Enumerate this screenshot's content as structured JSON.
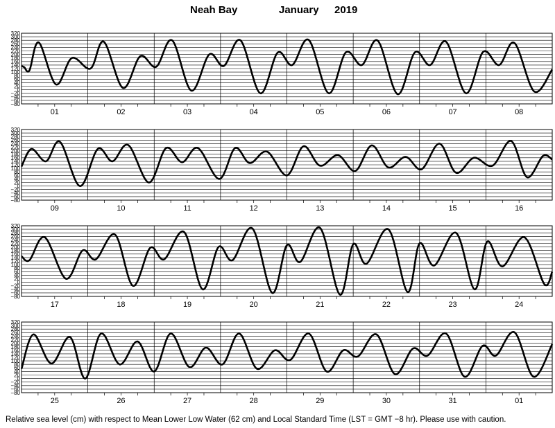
{
  "header": {
    "station": "Neah Bay",
    "month": "January",
    "year": "2019"
  },
  "footer": {
    "note": "Relative sea level (cm) with respect to Mean Lower Low Water (62 cm) and Local Standard Time (LST = GMT −8 hr). Please use with caution."
  },
  "chart_data": [
    {
      "type": "line",
      "ylim": [
        -80,
        320
      ],
      "yticks": [
        "320",
        "300",
        "280",
        "260",
        "240",
        "220",
        "200",
        "180",
        "160",
        "140",
        "120",
        "100",
        "80",
        "60",
        "40",
        "20",
        "0",
        "−20",
        "−40",
        "−60",
        "−80"
      ],
      "categories": [
        "01",
        "02",
        "03",
        "04",
        "05",
        "06",
        "07",
        "08"
      ],
      "series": [
        {
          "x": [
            0,
            0.04,
            0.12,
            0.26,
            0.52,
            0.76,
            1.04,
            1.24,
            1.53,
            1.79,
            2.03,
            2.27,
            2.56,
            2.83,
            3.05,
            3.3,
            3.6,
            3.86,
            4.08,
            4.33,
            4.63,
            4.89,
            5.13,
            5.37,
            5.67,
            5.93,
            6.16,
            6.4,
            6.7,
            6.96,
            7.2,
            7.43,
            7.73,
            8.0
          ],
          "y": [
            135,
            128,
            110,
            268,
            30,
            180,
            120,
            272,
            10,
            190,
            130,
            280,
            -5,
            200,
            135,
            280,
            -20,
            210,
            140,
            282,
            -20,
            212,
            140,
            278,
            -25,
            212,
            140,
            272,
            -20,
            215,
            140,
            265,
            -10,
            115
          ]
        }
      ]
    },
    {
      "type": "line",
      "ylim": [
        -80,
        320
      ],
      "yticks": [
        "320",
        "300",
        "280",
        "260",
        "240",
        "220",
        "200",
        "180",
        "160",
        "140",
        "120",
        "100",
        "80",
        "60",
        "40",
        "20",
        "0",
        "−20",
        "−40",
        "−60",
        "−80"
      ],
      "categories": [
        "09",
        "10",
        "11",
        "12",
        "13",
        "14",
        "15",
        "16"
      ],
      "series": [
        {
          "x": [
            0,
            0.15,
            0.37,
            0.58,
            0.88,
            1.15,
            1.37,
            1.61,
            1.92,
            2.18,
            2.42,
            2.66,
            2.98,
            3.22,
            3.44,
            3.7,
            4.0,
            4.25,
            4.5,
            4.77,
            5.03,
            5.28,
            5.53,
            5.79,
            6.03,
            6.3,
            6.55,
            6.82,
            7.1,
            7.38,
            7.62,
            7.86,
            8.0
          ],
          "y": [
            110,
            210,
            140,
            250,
            0,
            210,
            140,
            232,
            20,
            215,
            135,
            215,
            40,
            215,
            130,
            195,
            60,
            225,
            115,
            175,
            85,
            230,
            105,
            165,
            95,
            240,
            75,
            160,
            115,
            255,
            50,
            170,
            150
          ]
        }
      ]
    },
    {
      "type": "line",
      "ylim": [
        -80,
        320
      ],
      "yticks": [
        "320",
        "300",
        "280",
        "260",
        "240",
        "220",
        "200",
        "180",
        "160",
        "140",
        "120",
        "100",
        "80",
        "60",
        "40",
        "20",
        "0",
        "−20",
        "−40",
        "−60",
        "−80"
      ],
      "categories": [
        "17",
        "18",
        "19",
        "20",
        "21",
        "22",
        "23",
        "24"
      ],
      "series": [
        {
          "x": [
            0,
            0.12,
            0.35,
            0.67,
            0.92,
            1.12,
            1.41,
            1.68,
            1.94,
            2.15,
            2.45,
            2.73,
            2.97,
            3.18,
            3.48,
            3.78,
            4.0,
            4.2,
            4.5,
            4.8,
            5.0,
            5.2,
            5.53,
            5.82,
            6.0,
            6.22,
            6.55,
            6.83,
            7.02,
            7.25,
            7.58,
            7.88,
            8.0
          ],
          "y": [
            148,
            125,
            255,
            20,
            180,
            130,
            270,
            -20,
            195,
            130,
            285,
            -40,
            200,
            125,
            305,
            -60,
            210,
            115,
            308,
            -70,
            215,
            105,
            300,
            -55,
            220,
            95,
            280,
            -40,
            230,
            90,
            255,
            -10,
            60
          ]
        }
      ]
    },
    {
      "type": "line",
      "ylim": [
        -80,
        320
      ],
      "yticks": [
        "320",
        "300",
        "280",
        "260",
        "240",
        "220",
        "200",
        "180",
        "160",
        "140",
        "120",
        "100",
        "80",
        "60",
        "40",
        "20",
        "0",
        "−20",
        "−40",
        "−60",
        "−80"
      ],
      "categories": [
        "25",
        "26",
        "27",
        "28",
        "29",
        "30",
        "31",
        "01"
      ],
      "series": [
        {
          "x": [
            0,
            0.18,
            0.45,
            0.73,
            0.96,
            1.2,
            1.48,
            1.75,
            2.0,
            2.25,
            2.53,
            2.78,
            3.03,
            3.28,
            3.55,
            3.82,
            4.05,
            4.33,
            4.6,
            4.85,
            5.07,
            5.35,
            5.63,
            5.9,
            6.12,
            6.4,
            6.68,
            6.95,
            7.15,
            7.43,
            7.72,
            8.0
          ],
          "y": [
            55,
            250,
            85,
            235,
            0,
            255,
            80,
            210,
            40,
            255,
            65,
            175,
            80,
            255,
            55,
            160,
            105,
            255,
            40,
            160,
            125,
            250,
            25,
            170,
            130,
            255,
            10,
            185,
            130,
            262,
            10,
            195
          ]
        }
      ]
    }
  ]
}
